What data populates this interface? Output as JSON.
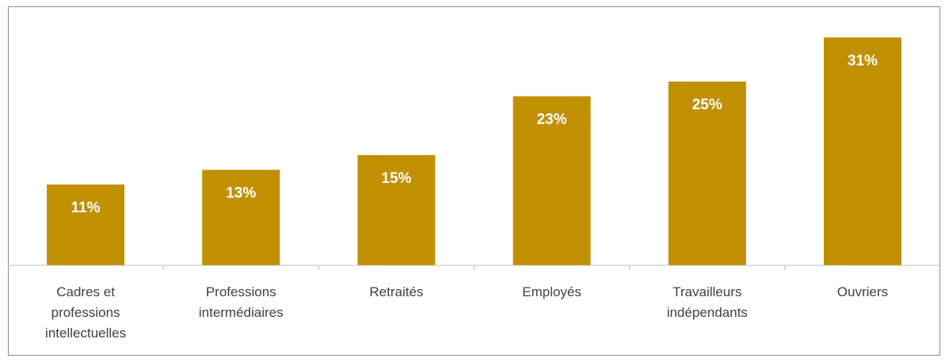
{
  "chart_data": {
    "type": "bar",
    "categories": [
      [
        "Cadres et",
        "professions",
        "intellectuelles"
      ],
      [
        "Professions",
        "intermédiaires"
      ],
      [
        "Retraités"
      ],
      [
        "Employés"
      ],
      [
        "Travailleurs",
        "indépendants"
      ],
      [
        "Ouvriers"
      ]
    ],
    "values": [
      11,
      13,
      15,
      23,
      25,
      31
    ],
    "data_labels": [
      "11%",
      "13%",
      "15%",
      "23%",
      "25%",
      "31%"
    ],
    "ylim": [
      0,
      32
    ],
    "bar_color": "#C09000",
    "axis_color": "#BFBFBF",
    "grid": false,
    "legend": "none",
    "title": "",
    "xlabel": "",
    "ylabel": ""
  }
}
